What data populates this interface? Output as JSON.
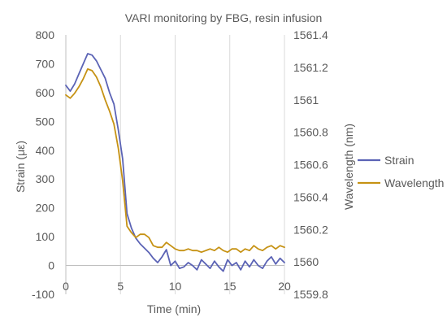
{
  "chart_data": {
    "type": "line",
    "title": "VARI monitoring by FBG, resin infusion",
    "xlabel": "Time (min)",
    "ylabel": "Strain (με)",
    "y2label": "Wavelength (nm)",
    "xlim": [
      0,
      20
    ],
    "ylim": [
      -100,
      800
    ],
    "y2lim": [
      1559.8,
      1561.4
    ],
    "xticks": [
      "0",
      "5",
      "10",
      "15",
      "20"
    ],
    "yticks": [
      "-100",
      "0",
      "100",
      "200",
      "300",
      "400",
      "500",
      "600",
      "700",
      "800"
    ],
    "y2ticks": [
      "1559.8",
      "1560",
      "1560.2",
      "1560.4",
      "1560.6",
      "1560.8",
      "1561",
      "1561.2",
      "1561.4"
    ],
    "grid": "vertical",
    "legend_position": "right",
    "series": [
      {
        "name": "Strain",
        "axis": "left",
        "color": "#5b63b5",
        "x": [
          0,
          0.4,
          0.8,
          1.2,
          1.6,
          2.0,
          2.4,
          2.8,
          3.2,
          3.6,
          4.0,
          4.4,
          4.8,
          5.2,
          5.6,
          6.0,
          6.4,
          6.8,
          7.2,
          7.6,
          8.0,
          8.4,
          8.8,
          9.2,
          9.6,
          10.0,
          10.4,
          10.8,
          11.2,
          11.6,
          12.0,
          12.4,
          12.8,
          13.2,
          13.6,
          14.0,
          14.4,
          14.8,
          15.2,
          15.6,
          16.0,
          16.4,
          16.8,
          17.2,
          17.6,
          18.0,
          18.4,
          18.8,
          19.2,
          19.6,
          20.0
        ],
        "values": [
          625,
          605,
          630,
          665,
          700,
          735,
          730,
          710,
          680,
          650,
          600,
          560,
          470,
          370,
          180,
          130,
          95,
          75,
          60,
          45,
          25,
          10,
          30,
          55,
          0,
          15,
          -10,
          -5,
          10,
          0,
          -15,
          20,
          5,
          -10,
          15,
          -5,
          -20,
          20,
          0,
          10,
          -15,
          15,
          -5,
          20,
          0,
          -10,
          15,
          30,
          5,
          25,
          10
        ]
      },
      {
        "name": "Wavelength",
        "axis": "right",
        "color": "#c69214",
        "x": [
          0,
          0.4,
          0.8,
          1.2,
          1.6,
          2.0,
          2.4,
          2.8,
          3.2,
          3.6,
          4.0,
          4.4,
          4.8,
          5.2,
          5.6,
          6.0,
          6.4,
          6.8,
          7.2,
          7.6,
          8.0,
          8.4,
          8.8,
          9.2,
          9.6,
          10.0,
          10.4,
          10.8,
          11.2,
          11.6,
          12.0,
          12.4,
          12.8,
          13.2,
          13.6,
          14.0,
          14.4,
          14.8,
          15.2,
          15.6,
          16.0,
          16.4,
          16.8,
          17.2,
          17.6,
          18.0,
          18.4,
          18.8,
          19.2,
          19.6,
          20.0
        ],
        "values": [
          1561.03,
          1561.01,
          1561.04,
          1561.08,
          1561.13,
          1561.19,
          1561.18,
          1561.14,
          1561.08,
          1561.0,
          1560.93,
          1560.85,
          1560.7,
          1560.5,
          1560.22,
          1560.18,
          1560.15,
          1560.17,
          1560.17,
          1560.15,
          1560.1,
          1560.09,
          1560.09,
          1560.12,
          1560.1,
          1560.08,
          1560.07,
          1560.07,
          1560.08,
          1560.07,
          1560.07,
          1560.06,
          1560.07,
          1560.08,
          1560.07,
          1560.09,
          1560.07,
          1560.06,
          1560.08,
          1560.08,
          1560.06,
          1560.08,
          1560.07,
          1560.1,
          1560.08,
          1560.07,
          1560.09,
          1560.1,
          1560.08,
          1560.1,
          1560.09
        ]
      }
    ]
  }
}
